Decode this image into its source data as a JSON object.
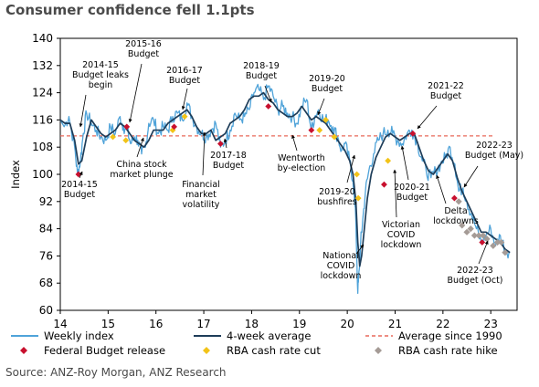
{
  "title": "Consumer confidence fell 1.1pts",
  "source": "Source: ANZ-Roy Morgan, ANZ Research",
  "chart_data": {
    "type": "line",
    "ylabel": "Index",
    "xlabel": "",
    "xlim": [
      2014,
      2023.55
    ],
    "ylim": [
      60,
      140
    ],
    "yticks": [
      60,
      68,
      76,
      84,
      92,
      100,
      108,
      116,
      124,
      132,
      140
    ],
    "xticks": [
      14,
      15,
      16,
      17,
      18,
      19,
      20,
      21,
      22,
      23
    ],
    "average_since_1990": 111.3,
    "colors": {
      "weekly": "#4fa3d9",
      "avg4w": "#1e3d59",
      "average_line": "#e8685a",
      "budget": "#c8102e",
      "cut": "#f2c318",
      "hike": "#a59b96"
    },
    "series": [
      {
        "name": "Weekly index",
        "x": [
          2014.0,
          2014.08,
          2014.18,
          2014.3,
          2014.36,
          2014.42,
          2014.48,
          2014.55,
          2014.65,
          2014.75,
          2014.85,
          2014.95,
          2015.05,
          2015.15,
          2015.25,
          2015.32,
          2015.4,
          2015.47,
          2015.55,
          2015.62,
          2015.7,
          2015.78,
          2015.85,
          2015.95,
          2016.05,
          2016.15,
          2016.25,
          2016.35,
          2016.45,
          2016.55,
          2016.65,
          2016.75,
          2016.85,
          2016.95,
          2017.05,
          2017.15,
          2017.25,
          2017.35,
          2017.45,
          2017.55,
          2017.65,
          2017.75,
          2017.85,
          2017.95,
          2018.05,
          2018.15,
          2018.25,
          2018.35,
          2018.45,
          2018.55,
          2018.65,
          2018.75,
          2018.85,
          2018.95,
          2019.05,
          2019.15,
          2019.25,
          2019.32,
          2019.4,
          2019.5,
          2019.6,
          2019.7,
          2019.8,
          2019.88,
          2019.95,
          2020.05,
          2020.12,
          2020.18,
          2020.22,
          2020.25,
          2020.28,
          2020.32,
          2020.38,
          2020.45,
          2020.55,
          2020.65,
          2020.75,
          2020.85,
          2020.95,
          2021.05,
          2021.15,
          2021.25,
          2021.35,
          2021.45,
          2021.55,
          2021.65,
          2021.75,
          2021.85,
          2021.95,
          2022.05,
          2022.15,
          2022.25,
          2022.33,
          2022.42,
          2022.5,
          2022.6,
          2022.7,
          2022.8,
          2022.9,
          2023.0,
          2023.1,
          2023.2,
          2023.3,
          2023.4
        ],
        "values": [
          116,
          114,
          117,
          108,
          100,
          104,
          112,
          118,
          115,
          113,
          111,
          110,
          114,
          112,
          117,
          114,
          113,
          109,
          111,
          110,
          106,
          108,
          115,
          116,
          112,
          114,
          113,
          117,
          118,
          116,
          121,
          117,
          114,
          112,
          111,
          113,
          115,
          108,
          110,
          113,
          118,
          116,
          117,
          119,
          124,
          125,
          122,
          126,
          123,
          119,
          120,
          118,
          117,
          115,
          120,
          122,
          113,
          117,
          119,
          116,
          116,
          114,
          111,
          107,
          109,
          104,
          98,
          86,
          65,
          72,
          80,
          86,
          95,
          101,
          106,
          110,
          112,
          113,
          112,
          110,
          109,
          112,
          113,
          110,
          105,
          101,
          99,
          101,
          103,
          105,
          108,
          103,
          95,
          96,
          92,
          88,
          84,
          80,
          82,
          84,
          79,
          82,
          78,
          77
        ]
      },
      {
        "name": "4-week average",
        "x": [
          2014.0,
          2014.1,
          2014.2,
          2014.3,
          2014.38,
          2014.45,
          2014.55,
          2014.65,
          2014.75,
          2014.85,
          2014.95,
          2015.05,
          2015.15,
          2015.25,
          2015.35,
          2015.45,
          2015.55,
          2015.65,
          2015.75,
          2015.85,
          2015.95,
          2016.05,
          2016.15,
          2016.25,
          2016.35,
          2016.45,
          2016.55,
          2016.65,
          2016.75,
          2016.85,
          2016.95,
          2017.05,
          2017.15,
          2017.25,
          2017.35,
          2017.45,
          2017.55,
          2017.65,
          2017.75,
          2017.85,
          2017.95,
          2018.05,
          2018.15,
          2018.25,
          2018.35,
          2018.45,
          2018.55,
          2018.65,
          2018.75,
          2018.85,
          2018.95,
          2019.05,
          2019.15,
          2019.25,
          2019.35,
          2019.45,
          2019.55,
          2019.65,
          2019.75,
          2019.85,
          2019.95,
          2020.05,
          2020.12,
          2020.18,
          2020.22,
          2020.26,
          2020.3,
          2020.35,
          2020.42,
          2020.5,
          2020.6,
          2020.7,
          2020.8,
          2020.9,
          2021.0,
          2021.1,
          2021.2,
          2021.3,
          2021.4,
          2021.5,
          2021.6,
          2021.7,
          2021.8,
          2021.9,
          2022.0,
          2022.1,
          2022.2,
          2022.3,
          2022.4,
          2022.5,
          2022.6,
          2022.7,
          2022.8,
          2022.9,
          2023.0,
          2023.1,
          2023.2,
          2023.3,
          2023.4
        ],
        "values": [
          116,
          115,
          115,
          110,
          103,
          104,
          111,
          116,
          114,
          112,
          111,
          112,
          113,
          115,
          114,
          112,
          110,
          109,
          108,
          110,
          113,
          113,
          113,
          115,
          116,
          117,
          118,
          119,
          117,
          114,
          112,
          112,
          113,
          110,
          111,
          112,
          115,
          116,
          117,
          119,
          122,
          123,
          123,
          124,
          122,
          121,
          119,
          118,
          117,
          117,
          118,
          120,
          118,
          116,
          117,
          116,
          115,
          113,
          111,
          109,
          107,
          104,
          100,
          92,
          80,
          73,
          76,
          83,
          93,
          100,
          105,
          108,
          111,
          112,
          111,
          110,
          111,
          112,
          112,
          108,
          104,
          101,
          100,
          102,
          104,
          106,
          104,
          99,
          95,
          92,
          89,
          86,
          83,
          83,
          82,
          81,
          80,
          78,
          77
        ]
      },
      {
        "name": "Average since 1990",
        "values": [
          111.3
        ]
      }
    ],
    "markers": {
      "Federal Budget release": [
        [
          2014.38,
          100
        ],
        [
          2015.39,
          114
        ],
        [
          2016.38,
          114
        ],
        [
          2017.35,
          109
        ],
        [
          2018.35,
          120
        ],
        [
          2019.25,
          113
        ],
        [
          2020.77,
          97
        ],
        [
          2021.37,
          112
        ],
        [
          2022.24,
          93
        ],
        [
          2022.82,
          80
        ]
      ],
      "RBA cash rate cut": [
        [
          2015.1,
          111
        ],
        [
          2015.37,
          110
        ],
        [
          2016.35,
          113
        ],
        [
          2016.6,
          117
        ],
        [
          2019.42,
          113
        ],
        [
          2019.55,
          116
        ],
        [
          2019.73,
          111
        ],
        [
          2020.2,
          100
        ],
        [
          2020.23,
          93
        ],
        [
          2020.85,
          104
        ]
      ],
      "RBA cash rate hike": [
        [
          2022.33,
          92
        ],
        [
          2022.4,
          85
        ],
        [
          2022.5,
          83
        ],
        [
          2022.58,
          84
        ],
        [
          2022.66,
          82
        ],
        [
          2022.75,
          82
        ],
        [
          2022.84,
          82
        ],
        [
          2022.92,
          81
        ],
        [
          2023.05,
          79
        ],
        [
          2023.14,
          80
        ],
        [
          2023.22,
          80
        ],
        [
          2023.3,
          77
        ]
      ]
    },
    "annotations": [
      {
        "text": "2014-15\nBudget leaks\nbegin",
        "at": [
          2014.32,
          115
        ]
      },
      {
        "text": "2014-15\nBudget",
        "at": [
          2014.38,
          100
        ]
      },
      {
        "text": "2015-16\nBudget",
        "at": [
          2015.39,
          114
        ]
      },
      {
        "text": "China stock\nmarket plunge",
        "at": [
          2015.65,
          109
        ]
      },
      {
        "text": "2016-17\nBudget",
        "at": [
          2016.42,
          116
        ]
      },
      {
        "text": "Financial\nmarket\nvolatility",
        "at": [
          2017.0,
          112
        ]
      },
      {
        "text": "2017-18\nBudget",
        "at": [
          2017.35,
          109
        ]
      },
      {
        "text": "2018-19\nBudget",
        "at": [
          2018.35,
          120
        ]
      },
      {
        "text": "Wentworth\nby-election",
        "at": [
          2018.8,
          111
        ]
      },
      {
        "text": "2019-20\nBudget",
        "at": [
          2019.3,
          117
        ]
      },
      {
        "text": "2019-20\nbushfires",
        "at": [
          2020.0,
          100
        ]
      },
      {
        "text": "National\nCOVID\nlockdown",
        "at": [
          2020.25,
          72
        ]
      },
      {
        "text": "Victorian\nCOVID\nlockdown",
        "at": [
          2020.6,
          96
        ]
      },
      {
        "text": "2020-21\nBudget",
        "at": [
          2020.8,
          97
        ]
      },
      {
        "text": "2021-22\nBudget",
        "at": [
          2021.37,
          113
        ]
      },
      {
        "text": "Delta\nlockdowns",
        "at": [
          2021.75,
          102
        ]
      },
      {
        "text": "2022-23\nBudget (May)",
        "at": [
          2022.24,
          93
        ]
      },
      {
        "text": "2022-23\nBudget (Oct)",
        "at": [
          2022.82,
          80
        ]
      }
    ],
    "legend": [
      {
        "label": "Weekly index",
        "kind": "line",
        "colorKey": "weekly"
      },
      {
        "label": "4-week average",
        "kind": "line",
        "colorKey": "avg4w"
      },
      {
        "label": "Average since 1990",
        "kind": "dash",
        "colorKey": "average_line"
      },
      {
        "label": "Federal Budget release",
        "kind": "diamond",
        "colorKey": "budget"
      },
      {
        "label": "RBA cash rate cut",
        "kind": "diamond",
        "colorKey": "cut"
      },
      {
        "label": "RBA cash rate hike",
        "kind": "diamond",
        "colorKey": "hike"
      }
    ],
    "legend_position": "bottom"
  }
}
